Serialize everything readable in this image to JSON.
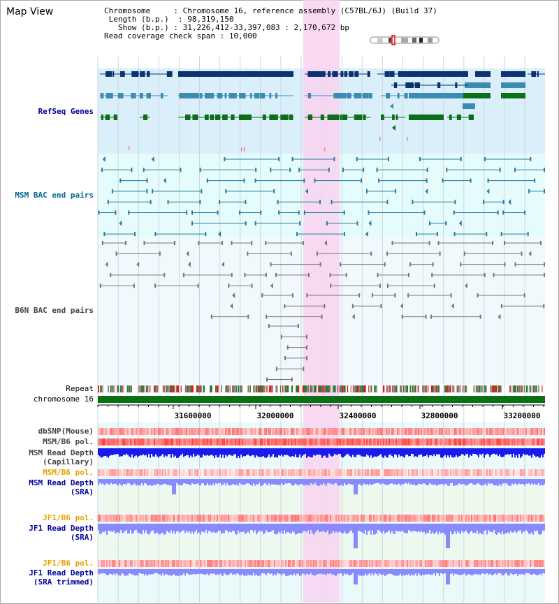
{
  "title": "Map View",
  "info": {
    "chromosome_label": "Chromosome",
    "chromosome_value": "Chromosome 16, reference assembly (C57BL/6J) (Build 37)",
    "length_label": "Length (b.p.)",
    "length_value": "98,319,150",
    "show_label": "Show (b.p.)",
    "show_value": "31,226,412-33,397,083 : 2,170,672 bp",
    "coverage_label": "Read coverage check span",
    "coverage_value": "10,000"
  },
  "tracks": {
    "refseq": "RefSeq Genes",
    "msm_bac": "MSM BAC end pairs",
    "b6n_bac": "B6N BAC end pairs",
    "repeat": "Repeat",
    "chromosome": "chromosome 16",
    "dbsnp": "dbSNP(Mouse)",
    "msm_b6_pol": "MSM/B6 pol.",
    "msm_rd_cap_1": "MSM Read Depth",
    "msm_rd_cap_2": "(Capillary)",
    "msm_b6_pol2": "MSM/B6 pol.",
    "msm_rd_sra_1": "MSM Read Depth",
    "msm_rd_sra_2": "(SRA)",
    "jf1_pol": "JF1/B6 pol.",
    "jf1_rd_1": "JF1 Read Depth",
    "jf1_rd_2": "(SRA)",
    "jf1_pol2": "JF1/B6 pol.",
    "jf1_tr_1": "JF1 Read Depth",
    "jf1_tr_2": "(SRA trimmed)"
  },
  "axis": {
    "ticks": [
      "31600000",
      "32000000",
      "32400000",
      "32800000",
      "33200000"
    ]
  },
  "colors": {
    "refseq_bg": "#dbeffa",
    "bac_bg": "#e6fbfb",
    "highlight": "#f8d4f0",
    "gene_dark": "#0b3371",
    "gene_mid": "#3b8bb5",
    "gene_green": "#0c6e18",
    "chromosome": "#0a7014",
    "read_depth": "#1a1aee",
    "read_depth_light": "#8a8aff"
  }
}
